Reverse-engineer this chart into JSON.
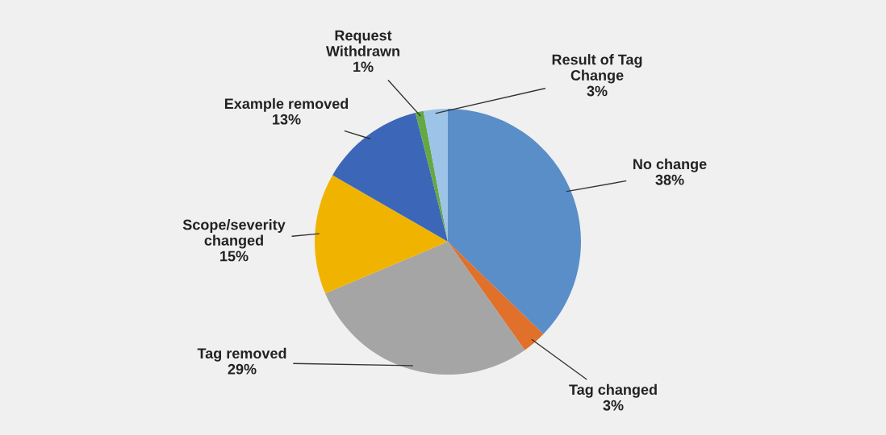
{
  "chart_data": {
    "type": "pie",
    "categories": [
      "No change",
      "Tag changed",
      "Tag removed",
      "Scope/severity\nchanged",
      "Example removed",
      "Request\nWithdrawn",
      "Result of Tag\nChange"
    ],
    "values": [
      38,
      3,
      29,
      15,
      13,
      1,
      3
    ],
    "value_labels": [
      "38%",
      "3%",
      "29%",
      "15%",
      "13%",
      "1%",
      "3%"
    ],
    "colors": [
      "#5a8ec8",
      "#e0702a",
      "#a5a5a5",
      "#f0b400",
      "#3c67b8",
      "#64a844",
      "#9dc3e6"
    ],
    "legend": false
  }
}
